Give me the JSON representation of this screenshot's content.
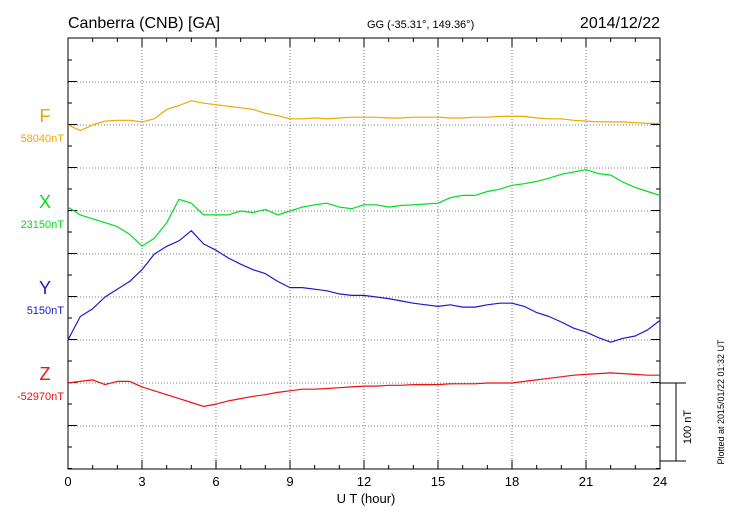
{
  "chart_data": {
    "type": "line",
    "title": "Canberra (CNB)  [GA]",
    "coordinates": "GG (-35.31°, 149.36°)",
    "date": "2014/12/22",
    "xlabel": "U T (hour)",
    "xlim": [
      0,
      24
    ],
    "x_ticks": [
      "0",
      "3",
      "6",
      "9",
      "12",
      "15",
      "18",
      "21",
      "24"
    ],
    "grid": true,
    "scale_bar_label": "100 nT",
    "scale_nT": 100,
    "footer": "Plotted at 2015/01/22 01:32 UT",
    "x": [
      0,
      0.5,
      1,
      1.5,
      2,
      2.5,
      3,
      3.5,
      4,
      4.5,
      5,
      5.5,
      6,
      6.5,
      7,
      7.5,
      8,
      8.5,
      9,
      9.5,
      10,
      10.5,
      11,
      11.5,
      12,
      12.5,
      13,
      13.5,
      14,
      14.5,
      15,
      15.5,
      16,
      16.5,
      17,
      17.5,
      18,
      18.5,
      19,
      19.5,
      20,
      20.5,
      21,
      21.5,
      22,
      22.5,
      23,
      23.5,
      24
    ],
    "series": [
      {
        "name": "F",
        "baseline_label": "58040nT",
        "color": "#f0a800",
        "baseline": 58040,
        "values": [
          58040,
          58033,
          58040,
          58045,
          58046,
          58046,
          58044,
          58048,
          58060,
          58065,
          58071,
          58068,
          58066,
          58064,
          58062,
          58060,
          58055,
          58052,
          58048,
          58048,
          58049,
          58048,
          58049,
          58050,
          58050,
          58050,
          58049,
          58049,
          58050,
          58050,
          58050,
          58049,
          58049,
          58050,
          58050,
          58051,
          58051,
          58051,
          58049,
          58048,
          58048,
          58046,
          58045,
          58044,
          58044,
          58044,
          58043,
          58042,
          58042
        ]
      },
      {
        "name": "X",
        "baseline_label": "23150nT",
        "color": "#00dd22",
        "baseline": 23150,
        "values": [
          23155,
          23145,
          23140,
          23135,
          23130,
          23120,
          23105,
          23115,
          23135,
          23165,
          23160,
          23145,
          23145,
          23145,
          23150,
          23148,
          23152,
          23145,
          23150,
          23155,
          23158,
          23160,
          23155,
          23153,
          23158,
          23158,
          23155,
          23157,
          23158,
          23159,
          23160,
          23167,
          23170,
          23170,
          23175,
          23178,
          23183,
          23185,
          23188,
          23192,
          23197,
          23200,
          23203,
          23198,
          23196,
          23187,
          23180,
          23175,
          23170
        ]
      },
      {
        "name": "Y",
        "baseline_label": "5150nT",
        "color": "#1a1acc",
        "baseline": 5150,
        "values": [
          5095,
          5125,
          5135,
          5150,
          5160,
          5170,
          5185,
          5205,
          5215,
          5222,
          5235,
          5218,
          5210,
          5200,
          5192,
          5185,
          5180,
          5170,
          5162,
          5162,
          5160,
          5158,
          5154,
          5152,
          5152,
          5150,
          5148,
          5145,
          5142,
          5140,
          5138,
          5140,
          5137,
          5137,
          5140,
          5142,
          5142,
          5138,
          5130,
          5125,
          5118,
          5110,
          5105,
          5098,
          5092,
          5097,
          5100,
          5108,
          5120
        ]
      },
      {
        "name": "Z",
        "baseline_label": "-52970nT",
        "color": "#ee1111",
        "baseline": -52970,
        "values": [
          -52970,
          -52968,
          -52966,
          -52972,
          -52968,
          -52968,
          -52975,
          -52980,
          -52985,
          -52990,
          -52995,
          -53000,
          -52997,
          -52993,
          -52990,
          -52987,
          -52985,
          -52982,
          -52980,
          -52978,
          -52978,
          -52977,
          -52976,
          -52975,
          -52974,
          -52974,
          -52973,
          -52973,
          -52972,
          -52972,
          -52972,
          -52971,
          -52971,
          -52971,
          -52970,
          -52970,
          -52970,
          -52968,
          -52966,
          -52964,
          -52962,
          -52960,
          -52959,
          -52958,
          -52957,
          -52958,
          -52959,
          -52960,
          -52960
        ]
      }
    ]
  }
}
